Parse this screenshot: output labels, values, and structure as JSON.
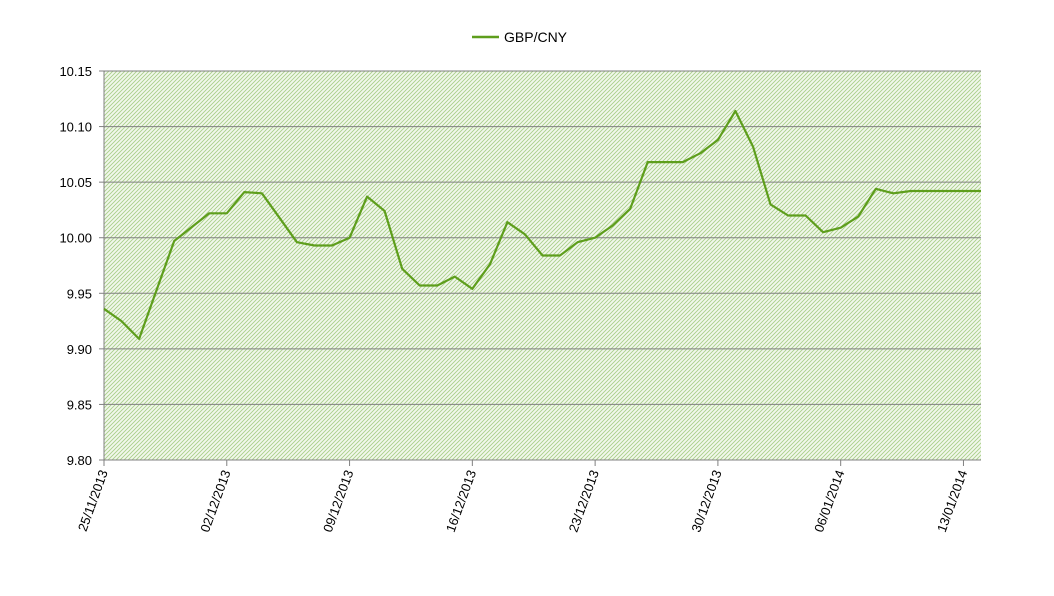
{
  "chart_data": {
    "type": "line",
    "legend": {
      "position": "top",
      "label": "GBP/CNY"
    },
    "series": [
      {
        "name": "GBP/CNY",
        "color": "#5e9e1c",
        "x": [
          "2013-11-25",
          "2013-11-26",
          "2013-11-27",
          "2013-11-28",
          "2013-11-29",
          "2013-12-01",
          "2013-12-02",
          "2013-12-03",
          "2013-12-04",
          "2013-12-05",
          "2013-12-06",
          "2013-12-07",
          "2013-12-08",
          "2013-12-09",
          "2013-12-10",
          "2013-12-11",
          "2013-12-12",
          "2013-12-13",
          "2013-12-14",
          "2013-12-15",
          "2013-12-16",
          "2013-12-17",
          "2013-12-18",
          "2013-12-19",
          "2013-12-20",
          "2013-12-21",
          "2013-12-22",
          "2013-12-23",
          "2013-12-24",
          "2013-12-25",
          "2013-12-26",
          "2013-12-27",
          "2013-12-28",
          "2013-12-29",
          "2013-12-30",
          "2013-12-31",
          "2014-01-01",
          "2014-01-02",
          "2014-01-03",
          "2014-01-04",
          "2014-01-05",
          "2014-01-06",
          "2014-01-07",
          "2014-01-08",
          "2014-01-09",
          "2014-01-10",
          "2014-01-11",
          "2014-01-12",
          "2014-01-13",
          "2014-01-14"
        ],
        "values": [
          9.936,
          9.925,
          9.909,
          9.953,
          9.997,
          10.022,
          10.022,
          10.041,
          10.04,
          10.018,
          9.996,
          9.993,
          9.993,
          10.0,
          10.037,
          10.024,
          9.972,
          9.957,
          9.957,
          9.965,
          9.954,
          9.976,
          10.014,
          10.003,
          9.984,
          9.984,
          9.996,
          10.0,
          10.011,
          10.026,
          10.068,
          10.068,
          10.068,
          10.076,
          10.088,
          10.114,
          10.082,
          10.03,
          10.02,
          10.02,
          10.005,
          10.009,
          10.019,
          10.044,
          10.04,
          10.042,
          10.042,
          10.042,
          10.042,
          10.042
        ]
      }
    ],
    "x_tick_labels": [
      "25/11/2013",
      "02/12/2013",
      "09/12/2013",
      "16/12/2013",
      "23/12/2013",
      "30/12/2013",
      "06/01/2014",
      "13/01/2014"
    ],
    "x_ticks": [
      "2013-11-25",
      "2013-12-02",
      "2013-12-09",
      "2013-12-16",
      "2013-12-23",
      "2013-12-30",
      "2014-01-06",
      "2014-01-13"
    ],
    "xlim": [
      "2013-11-25",
      "2014-01-14"
    ],
    "y_ticks": [
      9.8,
      9.85,
      9.9,
      9.95,
      10.0,
      10.05,
      10.1,
      10.15
    ],
    "y_tick_labels": [
      "9.80",
      "9.85",
      "9.90",
      "9.95",
      "10.00",
      "10.05",
      "10.10",
      "10.15"
    ],
    "ylim": [
      9.8,
      10.15
    ],
    "grid": {
      "horizontal": true,
      "vertical": false
    },
    "plot_background": "hatched-green"
  }
}
